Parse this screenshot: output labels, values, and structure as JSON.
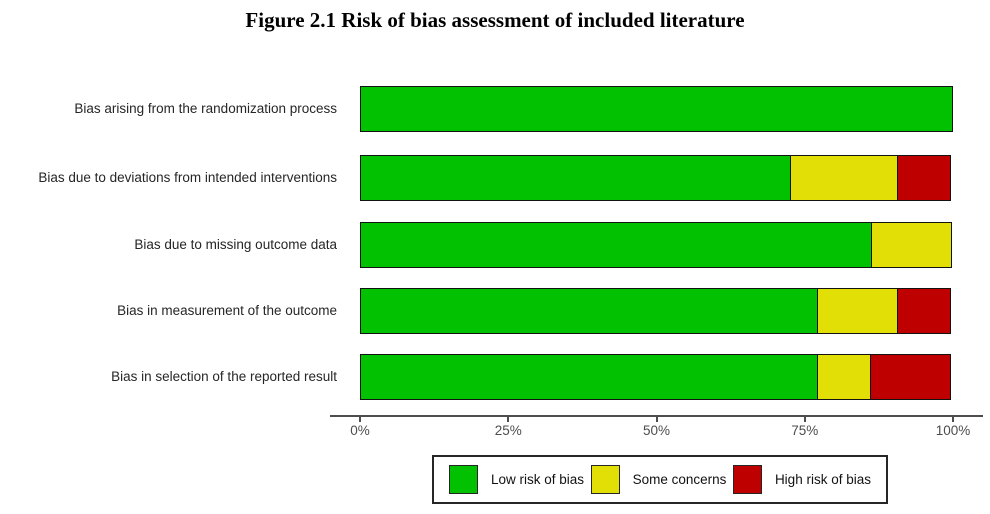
{
  "figure": {
    "title": "Figure 2.1 Risk of bias assessment of included literature"
  },
  "chart_data": {
    "type": "bar",
    "orientation": "horizontal",
    "stacked": true,
    "title": "Figure 2.1 Risk of bias assessment of included literature",
    "categories": [
      "Bias arising from the randomization process",
      "Bias due to deviations from intended interventions",
      "Bias due to missing outcome data",
      "Bias in measurement of the outcome",
      "Bias in selection of the reported result"
    ],
    "series": [
      {
        "name": "Low risk of bias",
        "color": "#02C100",
        "values": [
          100,
          72.7,
          86.4,
          77.3,
          77.3
        ]
      },
      {
        "name": "Some concerns",
        "color": "#E2DF07",
        "values": [
          0,
          18.2,
          13.6,
          13.6,
          9.1
        ]
      },
      {
        "name": "High risk of bias",
        "color": "#BF0000",
        "values": [
          0,
          9.1,
          0,
          9.1,
          13.6
        ]
      }
    ],
    "x_tick_labels": [
      "0%",
      "25%",
      "50%",
      "75%",
      "100%"
    ],
    "x_tick_values": [
      0,
      25,
      50,
      75,
      100
    ],
    "xlim": [
      0,
      100
    ],
    "xlabel": "",
    "ylabel": "",
    "grid": false,
    "legend": {
      "position": "bottom",
      "entries": [
        "Low risk of bias",
        "Some concerns",
        "High risk of bias"
      ]
    },
    "status_colors": {
      "low_risk": "#02C100",
      "some_concerns": "#E2DF07",
      "high_risk": "#BF0000"
    }
  }
}
